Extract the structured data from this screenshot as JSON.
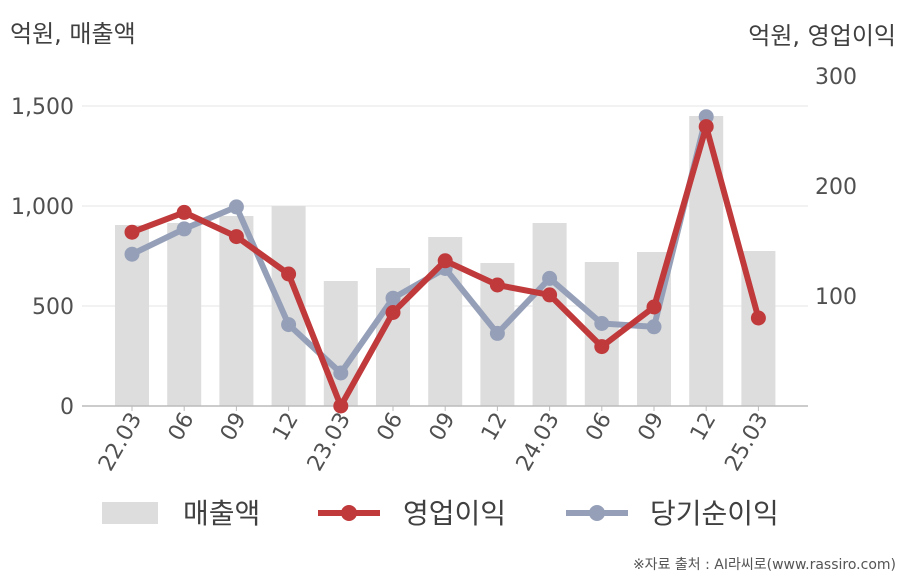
{
  "units": {
    "left": "억원, 매출액",
    "right": "억원, 영업이익"
  },
  "source": "※자료 출처 : AI라씨로(www.rassiro.com)",
  "colors": {
    "revenue": "#dddddd",
    "operating_profit": "#c0393b",
    "net_income": "#95a0b8",
    "grid": "#e6e6e6",
    "axis": "#bbbbbb"
  },
  "chart_data": {
    "type": "bar+line",
    "categories": [
      "22.03",
      "06",
      "09",
      "12",
      "23.03",
      "06",
      "09",
      "12",
      "24.03",
      "06",
      "09",
      "12",
      "25.03"
    ],
    "series": [
      {
        "name": "매출액",
        "type": "bar",
        "axis": "left",
        "values": [
          905,
          915,
          950,
          1000,
          625,
          690,
          845,
          715,
          915,
          720,
          770,
          1450,
          775
        ]
      },
      {
        "name": "영업이익",
        "type": "line",
        "axis": "right",
        "values": [
          158,
          176,
          154,
          120,
          0,
          85,
          132,
          110,
          101,
          54,
          90,
          254,
          80
        ]
      },
      {
        "name": "당기순이익",
        "type": "line",
        "axis": "right",
        "values": [
          138,
          161,
          181,
          74,
          30,
          98,
          125,
          66,
          116,
          75,
          72,
          263,
          null
        ]
      }
    ],
    "y_left": {
      "ticks": [
        "0",
        "500",
        "1,000",
        "1,500"
      ],
      "values": [
        0,
        500,
        1000,
        1500
      ],
      "ylim": [
        0,
        1500
      ]
    },
    "y_right": {
      "ticks": [
        "100",
        "200",
        "300"
      ],
      "values": [
        100,
        200,
        300
      ],
      "ylim": [
        0,
        300
      ]
    },
    "legend": {
      "position": "bottom",
      "items": [
        "매출액",
        "영업이익",
        "당기순이익"
      ]
    },
    "grid": true
  }
}
